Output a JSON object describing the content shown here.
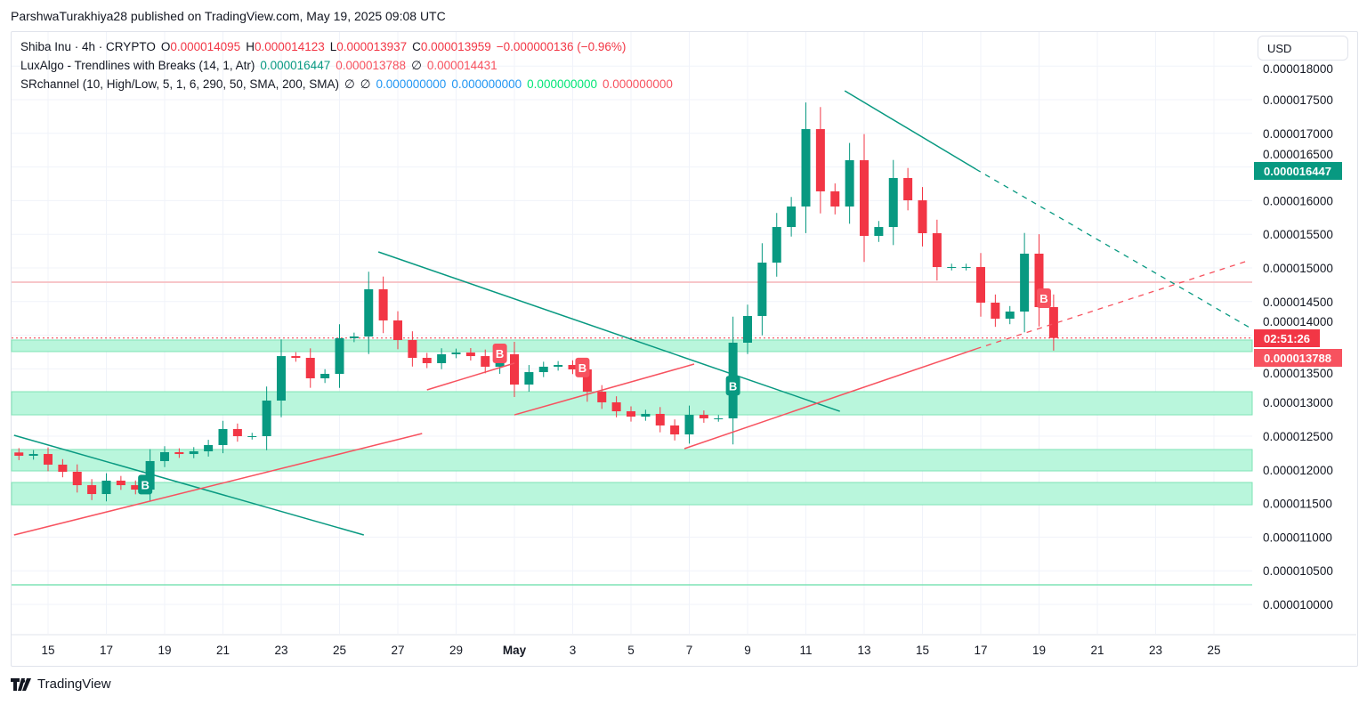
{
  "publisher_line": "ParshwaTurakhiya28 published on TradingView.com, May 19, 2025 09:08 UTC",
  "legend": {
    "symbol": "Shiba Inu · 4h · CRYPTO",
    "o_label": "O",
    "o": "0.000014095",
    "h_label": "H",
    "h": "0.000014123",
    "l_label": "L",
    "l": "0.000013937",
    "c_label": "C",
    "c": "0.000013959",
    "change": "−0.000000136 (−0.96%)",
    "ind1_name": "LuxAlgo - Trendlines with Breaks (14, 1, Atr)",
    "ind1_v1": "0.000016447",
    "ind1_v2": "0.000013788",
    "ind1_v3": "∅",
    "ind1_v4": "0.000014431",
    "ind2_name": "SRchannel (10, High/Low, 5, 1, 6, 290, 50, SMA, 200, SMA)",
    "ind2_v1": "∅",
    "ind2_v2": "∅",
    "ind2_v3": "0.000000000",
    "ind2_v4": "0.000000000",
    "ind2_v5": "0.000000000",
    "ind2_v6": "0.000000000"
  },
  "currency_button": "USD",
  "badges": {
    "upper_trendline": "0.000016447",
    "countdown": "02:51:26",
    "lower_trendline": "0.000013788"
  },
  "footer_brand": "TradingView",
  "colors": {
    "up": "#089981",
    "down": "#f23645",
    "zone": "#b9f6dc",
    "zone_edge": "#7ee3b5",
    "resistance": "#f7c6c9",
    "trend_teal": "#089981",
    "trend_red": "#f7525f"
  },
  "chart_data": {
    "type": "candlestick",
    "title": "",
    "xlabel": "",
    "ylabel": "",
    "ylim": [
      9.2e-06,
      1.81e-05
    ],
    "y_ticks": [
      "0.000018000",
      "0.000017500",
      "0.000017000",
      "0.000016500",
      "0.000016000",
      "0.000015500",
      "0.000015000",
      "0.000014500",
      "0.000014000",
      "0.000013500",
      "0.000013000",
      "0.000012500",
      "0.000012000",
      "0.000011500",
      "0.000011000",
      "0.000010500",
      "0.000010000"
    ],
    "x_ticks": [
      {
        "label": "15",
        "date": "04-15"
      },
      {
        "label": "17",
        "date": "04-17"
      },
      {
        "label": "19",
        "date": "04-19"
      },
      {
        "label": "21",
        "date": "04-21"
      },
      {
        "label": "23",
        "date": "04-23"
      },
      {
        "label": "25",
        "date": "04-25"
      },
      {
        "label": "27",
        "date": "04-27"
      },
      {
        "label": "29",
        "date": "04-29"
      },
      {
        "label": "May",
        "date": "05-01"
      },
      {
        "label": "3",
        "date": "05-03"
      },
      {
        "label": "5",
        "date": "05-05"
      },
      {
        "label": "7",
        "date": "05-07"
      },
      {
        "label": "9",
        "date": "05-09"
      },
      {
        "label": "11",
        "date": "05-11"
      },
      {
        "label": "13",
        "date": "05-13"
      },
      {
        "label": "15",
        "date": "05-15"
      },
      {
        "label": "17",
        "date": "05-17"
      },
      {
        "label": "19",
        "date": "05-19"
      },
      {
        "label": "21",
        "date": "05-21"
      },
      {
        "label": "23",
        "date": "05-23"
      },
      {
        "label": "25",
        "date": "05-25"
      }
    ],
    "candles_start": "04-14 00:00",
    "candles_interval_hours": 12,
    "closes": [
      1.2209e-05,
      1.2235e-05,
      1.2077e-05,
      1.1971e-05,
      1.1772e-05,
      1.164e-05,
      1.1839e-05,
      1.1772e-05,
      1.1706e-05,
      1.213e-05,
      1.2262e-05,
      1.2235e-05,
      1.2275e-05,
      1.2368e-05,
      1.2606e-05,
      1.25e-05,
      1.25e-05,
      1.3029e-05,
      1.369e-05,
      1.3664e-05,
      1.336e-05,
      1.3426e-05,
      1.3955e-05,
      1.3981e-05,
      1.4683e-05,
      1.422e-05,
      1.3929e-05,
      1.3664e-05,
      1.3585e-05,
      1.3717e-05,
      1.3743e-05,
      1.369e-05,
      1.3532e-05,
      1.3717e-05,
      1.3267e-05,
      1.3452e-05,
      1.3532e-05,
      1.3558e-05,
      1.3492e-05,
      1.3161e-05,
      1.3003e-05,
      1.287e-05,
      1.2791e-05,
      1.2831e-05,
      1.2659e-05,
      1.2526e-05,
      1.2817e-05,
      1.2765e-05,
      1.2765e-05,
      1.3889e-05,
      1.4286e-05,
      1.5079e-05,
      1.5608e-05,
      1.5913e-05,
      1.7063e-05,
      1.6138e-05,
      1.5913e-05,
      1.6601e-05,
      1.5476e-05,
      1.5608e-05,
      1.6336e-05,
      1.6005e-05,
      1.5516e-05,
      1.5013e-05,
      1.5013e-05,
      1.5013e-05,
      1.4484e-05,
      1.4246e-05,
      1.4352e-05,
      1.5212e-05,
      1.4418e-05,
      1.3959e-05
    ],
    "sr_zones": [
      {
        "top": 1.3929e-05,
        "bottom": 1.3757e-05
      },
      {
        "top": 1.3161e-05,
        "bottom": 1.2817e-05
      },
      {
        "top": 1.2302e-05,
        "bottom": 1.1984e-05
      },
      {
        "top": 1.1812e-05,
        "bottom": 1.1481e-05
      }
    ],
    "sr_line": 1.0291e-05,
    "resistance_line": 1.4788e-05,
    "current_price": 1.3959e-05,
    "trendlines": [
      {
        "color": "teal",
        "from": [
          "04-13 20:00",
          1.2513e-05
        ],
        "to": [
          "04-25 20:00",
          1.1032e-05
        ]
      },
      {
        "color": "teal",
        "from": [
          "04-26 08:00",
          1.5238e-05
        ],
        "to": [
          "05-12 04:00",
          1.287e-05
        ]
      },
      {
        "color": "teal",
        "from": [
          "05-12 08:00",
          1.7632e-05
        ],
        "to": [
          "05-16 20:00",
          1.6468e-05
        ],
        "extend_to": [
          "05-26 08:00",
          1.4087e-05
        ]
      },
      {
        "color": "red",
        "from": [
          "04-13 20:00",
          1.1032e-05
        ],
        "to": [
          "04-27 20:00",
          1.254e-05
        ]
      },
      {
        "color": "red",
        "from": [
          "04-28 00:00",
          1.3188e-05
        ],
        "to": [
          "05-01 00:00",
          1.3585e-05
        ]
      },
      {
        "color": "red",
        "from": [
          "05-01 00:00",
          1.2817e-05
        ],
        "to": [
          "05-07 04:00",
          1.3571e-05
        ]
      },
      {
        "color": "red",
        "from": [
          "05-06 20:00",
          1.2315e-05
        ],
        "to": [
          "05-16 20:00",
          1.3796e-05
        ],
        "extend_to": [
          "05-26 04:00",
          1.5106e-05
        ]
      }
    ],
    "break_labels": [
      {
        "text": "B",
        "color": "teal",
        "date": "04-18 08:00",
        "price": 1.178e-05
      },
      {
        "text": "B",
        "color": "red",
        "date": "04-30 12:00",
        "price": 1.373e-05
      },
      {
        "text": "B",
        "color": "red",
        "date": "05-03 08:00",
        "price": 1.352e-05
      },
      {
        "text": "B",
        "color": "teal",
        "date": "05-08 12:00",
        "price": 1.325e-05
      },
      {
        "text": "B",
        "color": "red",
        "date": "05-19 04:00",
        "price": 1.455e-05
      }
    ],
    "grid": true
  }
}
